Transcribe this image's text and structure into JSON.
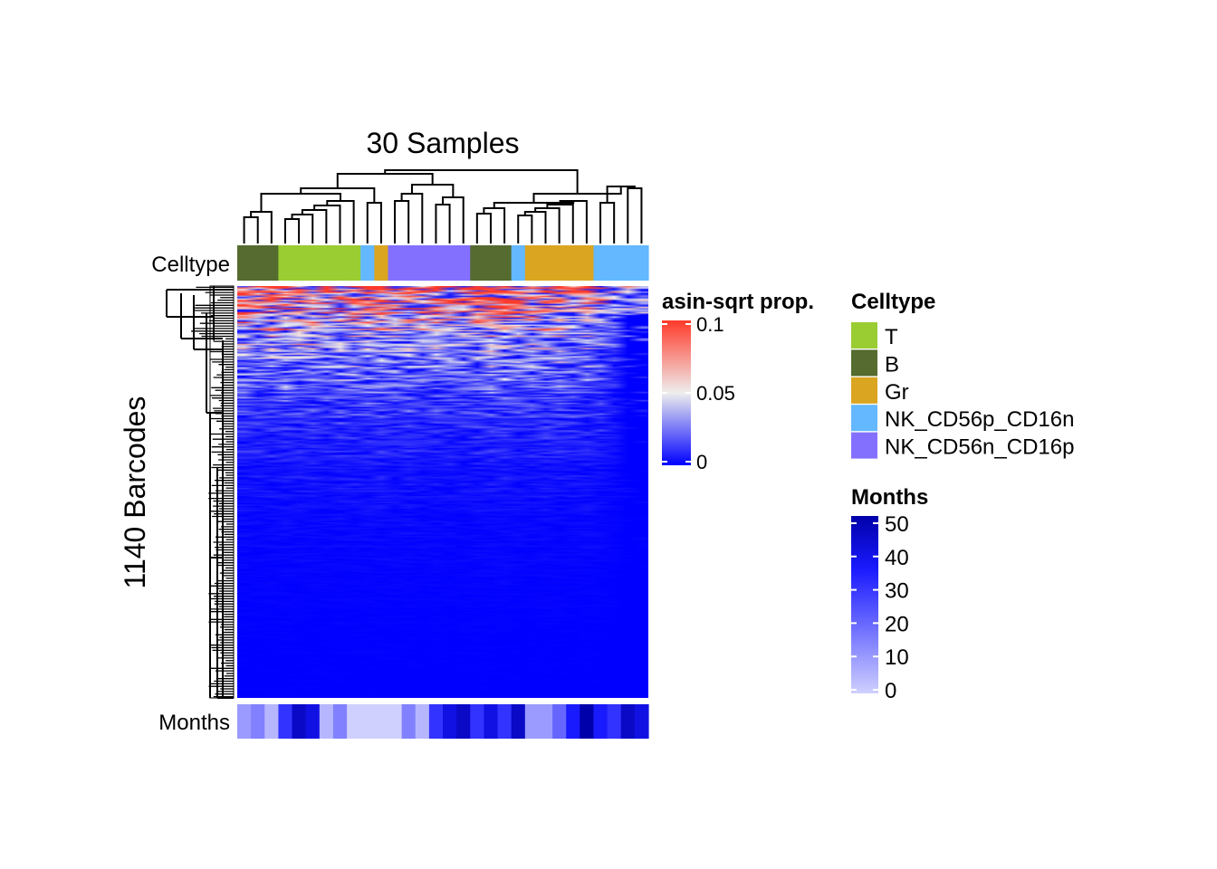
{
  "chart_data": {
    "type": "heatmap",
    "title": "30 Samples",
    "ylabel": "1140 Barcodes",
    "n_samples": 30,
    "n_barcodes": 1140,
    "column_annotation_labels": {
      "top": "Celltype",
      "bottom": "Months"
    },
    "column_celltypes": [
      "B",
      "B",
      "B",
      "T",
      "T",
      "T",
      "T",
      "T",
      "T",
      "NK_CD56p_CD16n",
      "Gr",
      "NK_CD56n_CD16p",
      "NK_CD56n_CD16p",
      "NK_CD56n_CD16p",
      "NK_CD56n_CD16p",
      "NK_CD56n_CD16p",
      "NK_CD56n_CD16p",
      "B",
      "B",
      "B",
      "NK_CD56p_CD16n",
      "Gr",
      "Gr",
      "Gr",
      "Gr",
      "Gr",
      "NK_CD56p_CD16n",
      "NK_CD56p_CD16n",
      "NK_CD56p_CD16n",
      "NK_CD56p_CD16n"
    ],
    "column_months": [
      10,
      15,
      5,
      30,
      45,
      40,
      5,
      15,
      0,
      0,
      0,
      0,
      15,
      5,
      30,
      40,
      45,
      30,
      40,
      30,
      45,
      10,
      10,
      20,
      35,
      50,
      35,
      30,
      45,
      40
    ],
    "value_legend": {
      "title": "asin-sqrt prop.",
      "ticks": [
        0.1,
        0.05,
        0
      ],
      "tick_labels": [
        "0.1",
        "0.05",
        "0"
      ],
      "colors": [
        "#0000ff",
        "#eeeeee",
        "#ff3a2a"
      ],
      "range": [
        0,
        0.1
      ]
    },
    "celltype_legend": {
      "title": "Celltype",
      "items": [
        {
          "label": "T",
          "color": "#9acd32"
        },
        {
          "label": "B",
          "color": "#556b2f"
        },
        {
          "label": "Gr",
          "color": "#daa520"
        },
        {
          "label": "NK_CD56p_CD16n",
          "color": "#63b8ff"
        },
        {
          "label": "NK_CD56n_CD16p",
          "color": "#8470ff"
        }
      ]
    },
    "months_legend": {
      "title": "Months",
      "ticks": [
        50,
        40,
        30,
        20,
        10,
        0
      ],
      "tick_labels": [
        "50",
        "40",
        "30",
        "20",
        "10",
        "0"
      ],
      "colors": [
        "#d0d0ff",
        "#0000aa"
      ],
      "range": [
        0,
        50
      ]
    }
  }
}
